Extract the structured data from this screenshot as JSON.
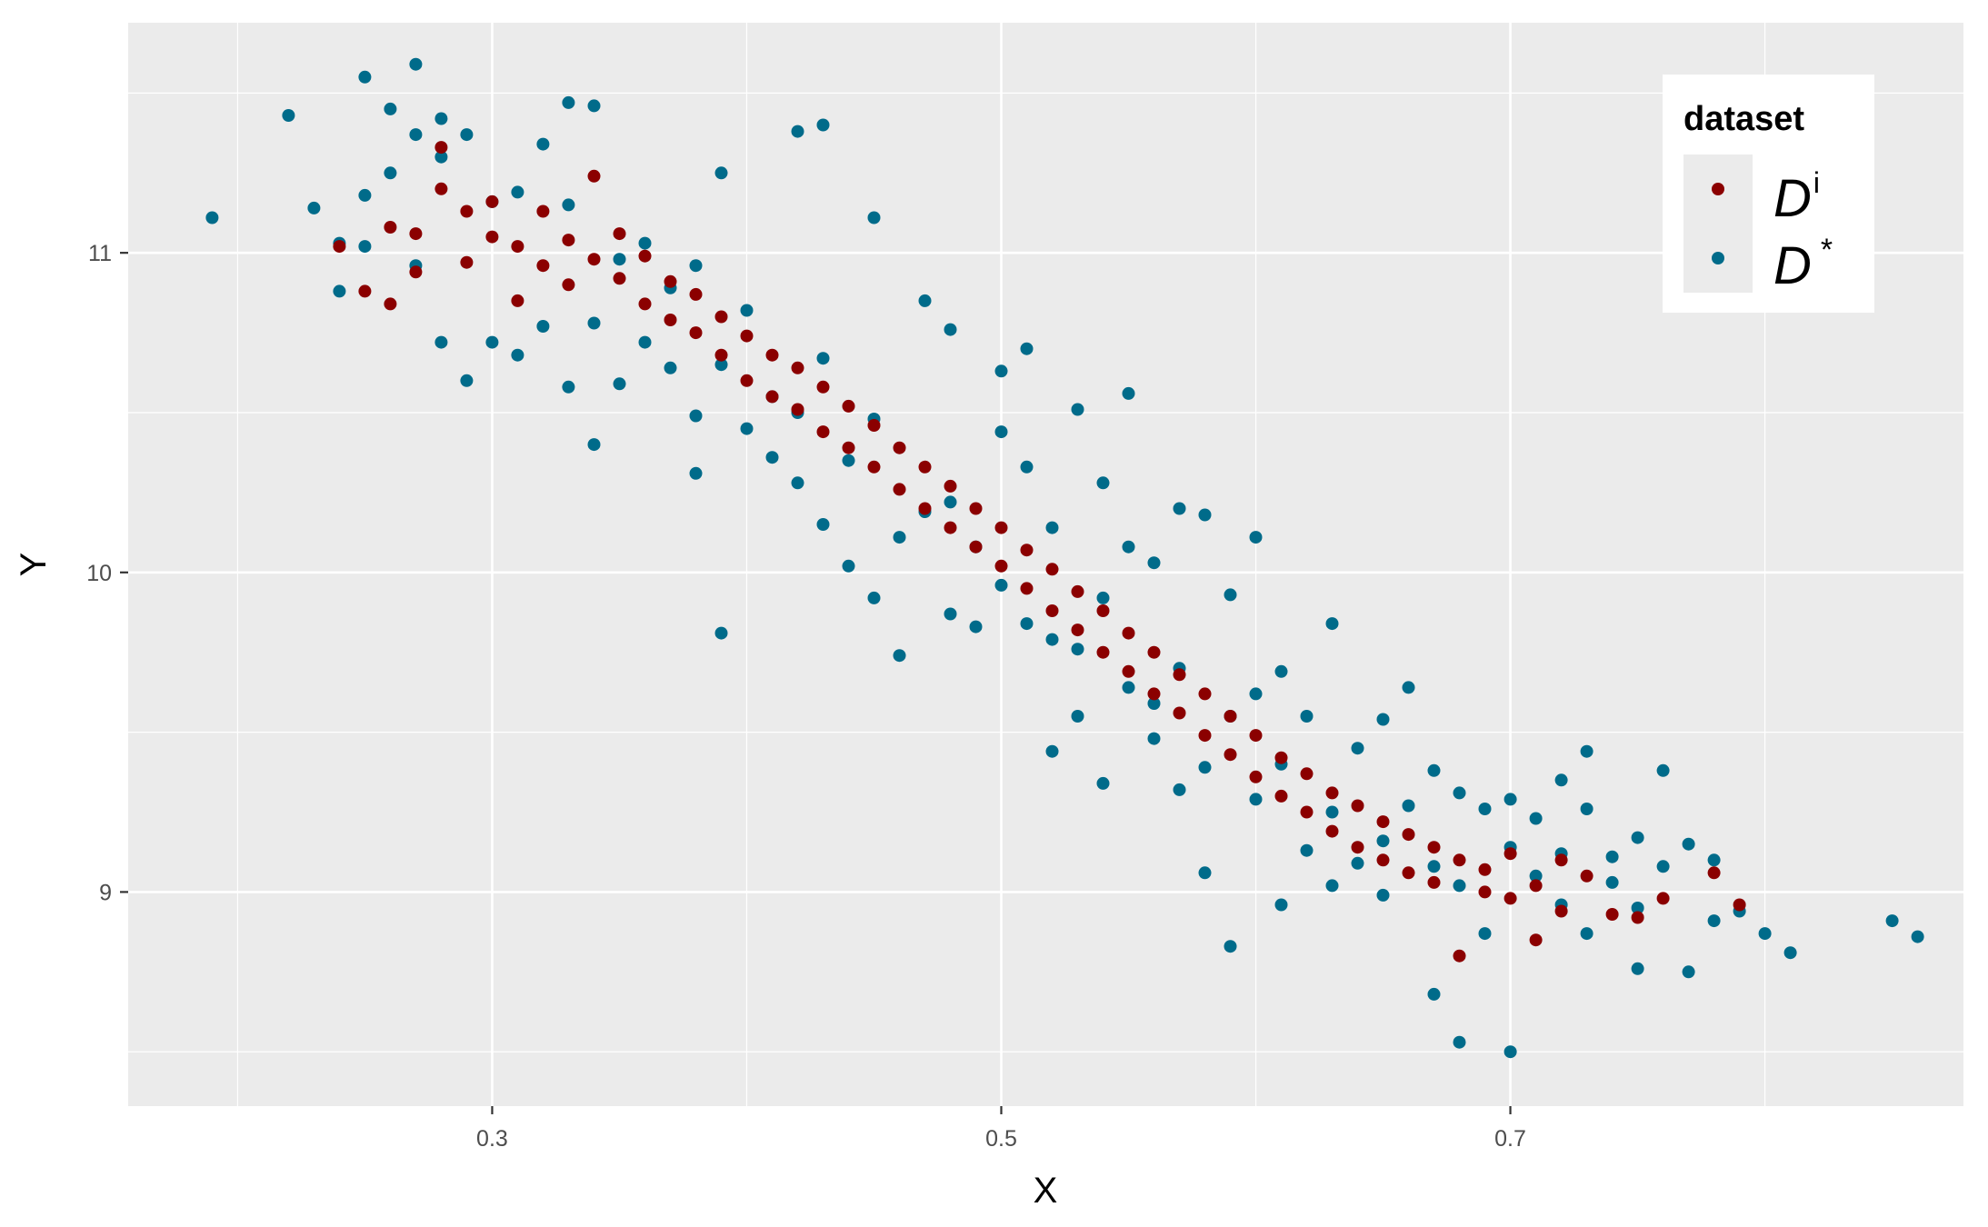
{
  "chart_data": {
    "type": "scatter",
    "xlabel": "X",
    "ylabel": "Y",
    "xlim": [
      0.157,
      0.878
    ],
    "ylim": [
      8.33,
      11.72
    ],
    "x_ticks": [
      "0.3",
      "0.5",
      "0.7"
    ],
    "y_ticks": [
      "9",
      "10",
      "11"
    ],
    "grid": true,
    "legend": {
      "title": "dataset",
      "position": "top-right",
      "entries": [
        {
          "symbol": "D",
          "superscript": "i",
          "color": "#8B0000"
        },
        {
          "symbol": "D",
          "superscript": "*",
          "color": "#006B8A"
        }
      ]
    },
    "series": [
      {
        "legend_index": 1,
        "color": "#006B8A",
        "points": [
          [
            0.19,
            11.11
          ],
          [
            0.22,
            11.43
          ],
          [
            0.23,
            11.14
          ],
          [
            0.24,
            11.03
          ],
          [
            0.24,
            10.88
          ],
          [
            0.25,
            11.55
          ],
          [
            0.25,
            11.18
          ],
          [
            0.25,
            11.02
          ],
          [
            0.26,
            11.25
          ],
          [
            0.26,
            11.45
          ],
          [
            0.27,
            11.59
          ],
          [
            0.27,
            11.37
          ],
          [
            0.27,
            10.96
          ],
          [
            0.28,
            11.42
          ],
          [
            0.28,
            11.3
          ],
          [
            0.28,
            10.72
          ],
          [
            0.29,
            11.37
          ],
          [
            0.29,
            10.6
          ],
          [
            0.3,
            11.16
          ],
          [
            0.3,
            10.72
          ],
          [
            0.31,
            11.19
          ],
          [
            0.31,
            10.68
          ],
          [
            0.32,
            11.34
          ],
          [
            0.32,
            10.77
          ],
          [
            0.33,
            11.47
          ],
          [
            0.33,
            11.15
          ],
          [
            0.33,
            10.58
          ],
          [
            0.34,
            11.46
          ],
          [
            0.34,
            10.78
          ],
          [
            0.34,
            10.4
          ],
          [
            0.35,
            10.98
          ],
          [
            0.35,
            10.59
          ],
          [
            0.36,
            11.03
          ],
          [
            0.36,
            10.72
          ],
          [
            0.37,
            10.89
          ],
          [
            0.37,
            10.64
          ],
          [
            0.38,
            10.96
          ],
          [
            0.38,
            10.31
          ],
          [
            0.38,
            10.49
          ],
          [
            0.39,
            11.25
          ],
          [
            0.39,
            10.65
          ],
          [
            0.39,
            9.81
          ],
          [
            0.4,
            10.45
          ],
          [
            0.4,
            10.82
          ],
          [
            0.41,
            10.55
          ],
          [
            0.41,
            10.36
          ],
          [
            0.42,
            11.38
          ],
          [
            0.42,
            10.28
          ],
          [
            0.42,
            10.5
          ],
          [
            0.43,
            11.4
          ],
          [
            0.43,
            10.15
          ],
          [
            0.43,
            10.67
          ],
          [
            0.44,
            10.02
          ],
          [
            0.44,
            10.35
          ],
          [
            0.45,
            11.11
          ],
          [
            0.45,
            9.92
          ],
          [
            0.45,
            10.48
          ],
          [
            0.46,
            10.11
          ],
          [
            0.46,
            9.74
          ],
          [
            0.47,
            10.85
          ],
          [
            0.47,
            10.19
          ],
          [
            0.48,
            9.87
          ],
          [
            0.48,
            10.76
          ],
          [
            0.48,
            10.22
          ],
          [
            0.49,
            10.08
          ],
          [
            0.49,
            9.83
          ],
          [
            0.5,
            10.63
          ],
          [
            0.5,
            10.44
          ],
          [
            0.5,
            9.96
          ],
          [
            0.51,
            10.7
          ],
          [
            0.51,
            9.84
          ],
          [
            0.51,
            10.33
          ],
          [
            0.52,
            9.79
          ],
          [
            0.52,
            10.14
          ],
          [
            0.52,
            9.44
          ],
          [
            0.53,
            10.51
          ],
          [
            0.53,
            9.76
          ],
          [
            0.53,
            9.55
          ],
          [
            0.54,
            10.28
          ],
          [
            0.54,
            9.92
          ],
          [
            0.54,
            9.34
          ],
          [
            0.55,
            10.56
          ],
          [
            0.55,
            9.64
          ],
          [
            0.55,
            10.08
          ],
          [
            0.56,
            9.59
          ],
          [
            0.56,
            10.03
          ],
          [
            0.56,
            9.48
          ],
          [
            0.57,
            10.2
          ],
          [
            0.57,
            9.32
          ],
          [
            0.57,
            9.7
          ],
          [
            0.58,
            10.18
          ],
          [
            0.58,
            9.39
          ],
          [
            0.58,
            9.06
          ],
          [
            0.59,
            9.93
          ],
          [
            0.59,
            8.83
          ],
          [
            0.59,
            9.55
          ],
          [
            0.6,
            10.11
          ],
          [
            0.6,
            9.29
          ],
          [
            0.6,
            9.62
          ],
          [
            0.61,
            9.69
          ],
          [
            0.61,
            8.96
          ],
          [
            0.61,
            9.4
          ],
          [
            0.62,
            9.55
          ],
          [
            0.62,
            9.13
          ],
          [
            0.63,
            9.84
          ],
          [
            0.63,
            9.25
          ],
          [
            0.63,
            9.02
          ],
          [
            0.64,
            9.45
          ],
          [
            0.64,
            9.09
          ],
          [
            0.65,
            9.54
          ],
          [
            0.65,
            9.16
          ],
          [
            0.65,
            8.99
          ],
          [
            0.66,
            9.64
          ],
          [
            0.66,
            9.27
          ],
          [
            0.67,
            9.38
          ],
          [
            0.67,
            8.68
          ],
          [
            0.67,
            9.08
          ],
          [
            0.68,
            9.31
          ],
          [
            0.68,
            8.53
          ],
          [
            0.68,
            9.02
          ],
          [
            0.69,
            9.26
          ],
          [
            0.69,
            8.87
          ],
          [
            0.7,
            9.14
          ],
          [
            0.7,
            8.5
          ],
          [
            0.7,
            9.29
          ],
          [
            0.71,
            9.23
          ],
          [
            0.71,
            9.05
          ],
          [
            0.72,
            9.12
          ],
          [
            0.72,
            9.35
          ],
          [
            0.72,
            8.96
          ],
          [
            0.73,
            9.44
          ],
          [
            0.73,
            9.26
          ],
          [
            0.73,
            8.87
          ],
          [
            0.74,
            9.11
          ],
          [
            0.74,
            9.03
          ],
          [
            0.75,
            9.17
          ],
          [
            0.75,
            8.76
          ],
          [
            0.75,
            8.95
          ],
          [
            0.76,
            9.38
          ],
          [
            0.76,
            9.08
          ],
          [
            0.77,
            9.15
          ],
          [
            0.77,
            8.75
          ],
          [
            0.78,
            9.1
          ],
          [
            0.78,
            8.91
          ],
          [
            0.79,
            8.94
          ],
          [
            0.8,
            8.87
          ],
          [
            0.81,
            8.81
          ],
          [
            0.85,
            8.91
          ],
          [
            0.86,
            8.86
          ]
        ]
      },
      {
        "legend_index": 0,
        "color": "#8B0000",
        "points": [
          [
            0.24,
            11.02
          ],
          [
            0.25,
            10.88
          ],
          [
            0.26,
            11.08
          ],
          [
            0.26,
            10.84
          ],
          [
            0.27,
            11.06
          ],
          [
            0.27,
            10.94
          ],
          [
            0.28,
            11.33
          ],
          [
            0.28,
            11.2
          ],
          [
            0.29,
            11.13
          ],
          [
            0.29,
            10.97
          ],
          [
            0.3,
            11.05
          ],
          [
            0.3,
            11.16
          ],
          [
            0.31,
            10.85
          ],
          [
            0.31,
            11.02
          ],
          [
            0.32,
            11.13
          ],
          [
            0.32,
            10.96
          ],
          [
            0.33,
            11.04
          ],
          [
            0.33,
            10.9
          ],
          [
            0.34,
            11.24
          ],
          [
            0.34,
            10.98
          ],
          [
            0.35,
            11.06
          ],
          [
            0.35,
            10.92
          ],
          [
            0.36,
            10.99
          ],
          [
            0.36,
            10.84
          ],
          [
            0.37,
            10.91
          ],
          [
            0.37,
            10.79
          ],
          [
            0.38,
            10.87
          ],
          [
            0.38,
            10.75
          ],
          [
            0.39,
            10.8
          ],
          [
            0.39,
            10.68
          ],
          [
            0.4,
            10.74
          ],
          [
            0.4,
            10.6
          ],
          [
            0.41,
            10.68
          ],
          [
            0.41,
            10.55
          ],
          [
            0.42,
            10.64
          ],
          [
            0.42,
            10.51
          ],
          [
            0.43,
            10.58
          ],
          [
            0.43,
            10.44
          ],
          [
            0.44,
            10.52
          ],
          [
            0.44,
            10.39
          ],
          [
            0.45,
            10.46
          ],
          [
            0.45,
            10.33
          ],
          [
            0.46,
            10.39
          ],
          [
            0.46,
            10.26
          ],
          [
            0.47,
            10.33
          ],
          [
            0.47,
            10.2
          ],
          [
            0.48,
            10.27
          ],
          [
            0.48,
            10.14
          ],
          [
            0.49,
            10.2
          ],
          [
            0.49,
            10.08
          ],
          [
            0.5,
            10.14
          ],
          [
            0.5,
            10.02
          ],
          [
            0.51,
            10.07
          ],
          [
            0.51,
            9.95
          ],
          [
            0.52,
            10.01
          ],
          [
            0.52,
            9.88
          ],
          [
            0.53,
            9.94
          ],
          [
            0.53,
            9.82
          ],
          [
            0.54,
            9.88
          ],
          [
            0.54,
            9.75
          ],
          [
            0.55,
            9.81
          ],
          [
            0.55,
            9.69
          ],
          [
            0.56,
            9.75
          ],
          [
            0.56,
            9.62
          ],
          [
            0.57,
            9.68
          ],
          [
            0.57,
            9.56
          ],
          [
            0.58,
            9.62
          ],
          [
            0.58,
            9.49
          ],
          [
            0.59,
            9.55
          ],
          [
            0.59,
            9.43
          ],
          [
            0.6,
            9.49
          ],
          [
            0.6,
            9.36
          ],
          [
            0.61,
            9.42
          ],
          [
            0.61,
            9.3
          ],
          [
            0.62,
            9.37
          ],
          [
            0.62,
            9.25
          ],
          [
            0.63,
            9.31
          ],
          [
            0.63,
            9.19
          ],
          [
            0.64,
            9.27
          ],
          [
            0.64,
            9.14
          ],
          [
            0.65,
            9.22
          ],
          [
            0.65,
            9.1
          ],
          [
            0.66,
            9.18
          ],
          [
            0.66,
            9.06
          ],
          [
            0.67,
            9.14
          ],
          [
            0.67,
            9.03
          ],
          [
            0.68,
            9.1
          ],
          [
            0.68,
            8.8
          ],
          [
            0.69,
            9.07
          ],
          [
            0.69,
            9.0
          ],
          [
            0.7,
            9.12
          ],
          [
            0.7,
            8.98
          ],
          [
            0.71,
            8.85
          ],
          [
            0.71,
            9.02
          ],
          [
            0.72,
            9.1
          ],
          [
            0.72,
            8.94
          ],
          [
            0.73,
            9.05
          ],
          [
            0.74,
            8.93
          ],
          [
            0.75,
            8.92
          ],
          [
            0.76,
            8.98
          ],
          [
            0.78,
            9.06
          ],
          [
            0.79,
            8.96
          ]
        ]
      }
    ]
  }
}
